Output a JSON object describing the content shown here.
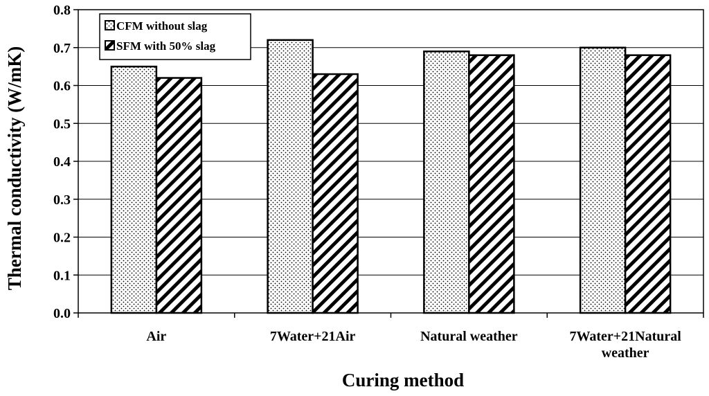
{
  "chart_data": {
    "type": "bar",
    "title": "",
    "xlabel": "Curing method",
    "ylabel": "Thermal conductivity (W/mK)",
    "ylim": [
      0,
      0.8
    ],
    "yticks": [
      "0.0",
      "0.1",
      "0.2",
      "0.3",
      "0.4",
      "0.5",
      "0.6",
      "0.7",
      "0.8"
    ],
    "grid": true,
    "legend_position": "top-left",
    "categories": [
      [
        "Air"
      ],
      [
        "7Water+21Air"
      ],
      [
        "Natural weather"
      ],
      [
        "7Water+21Natural",
        "weather"
      ]
    ],
    "series": [
      {
        "name": "CFM without slag",
        "pattern": "dots",
        "values": [
          0.65,
          0.72,
          0.69,
          0.7
        ]
      },
      {
        "name": "SFM with 50% slag",
        "pattern": "diagonal",
        "values": [
          0.62,
          0.63,
          0.68,
          0.68
        ]
      }
    ]
  }
}
